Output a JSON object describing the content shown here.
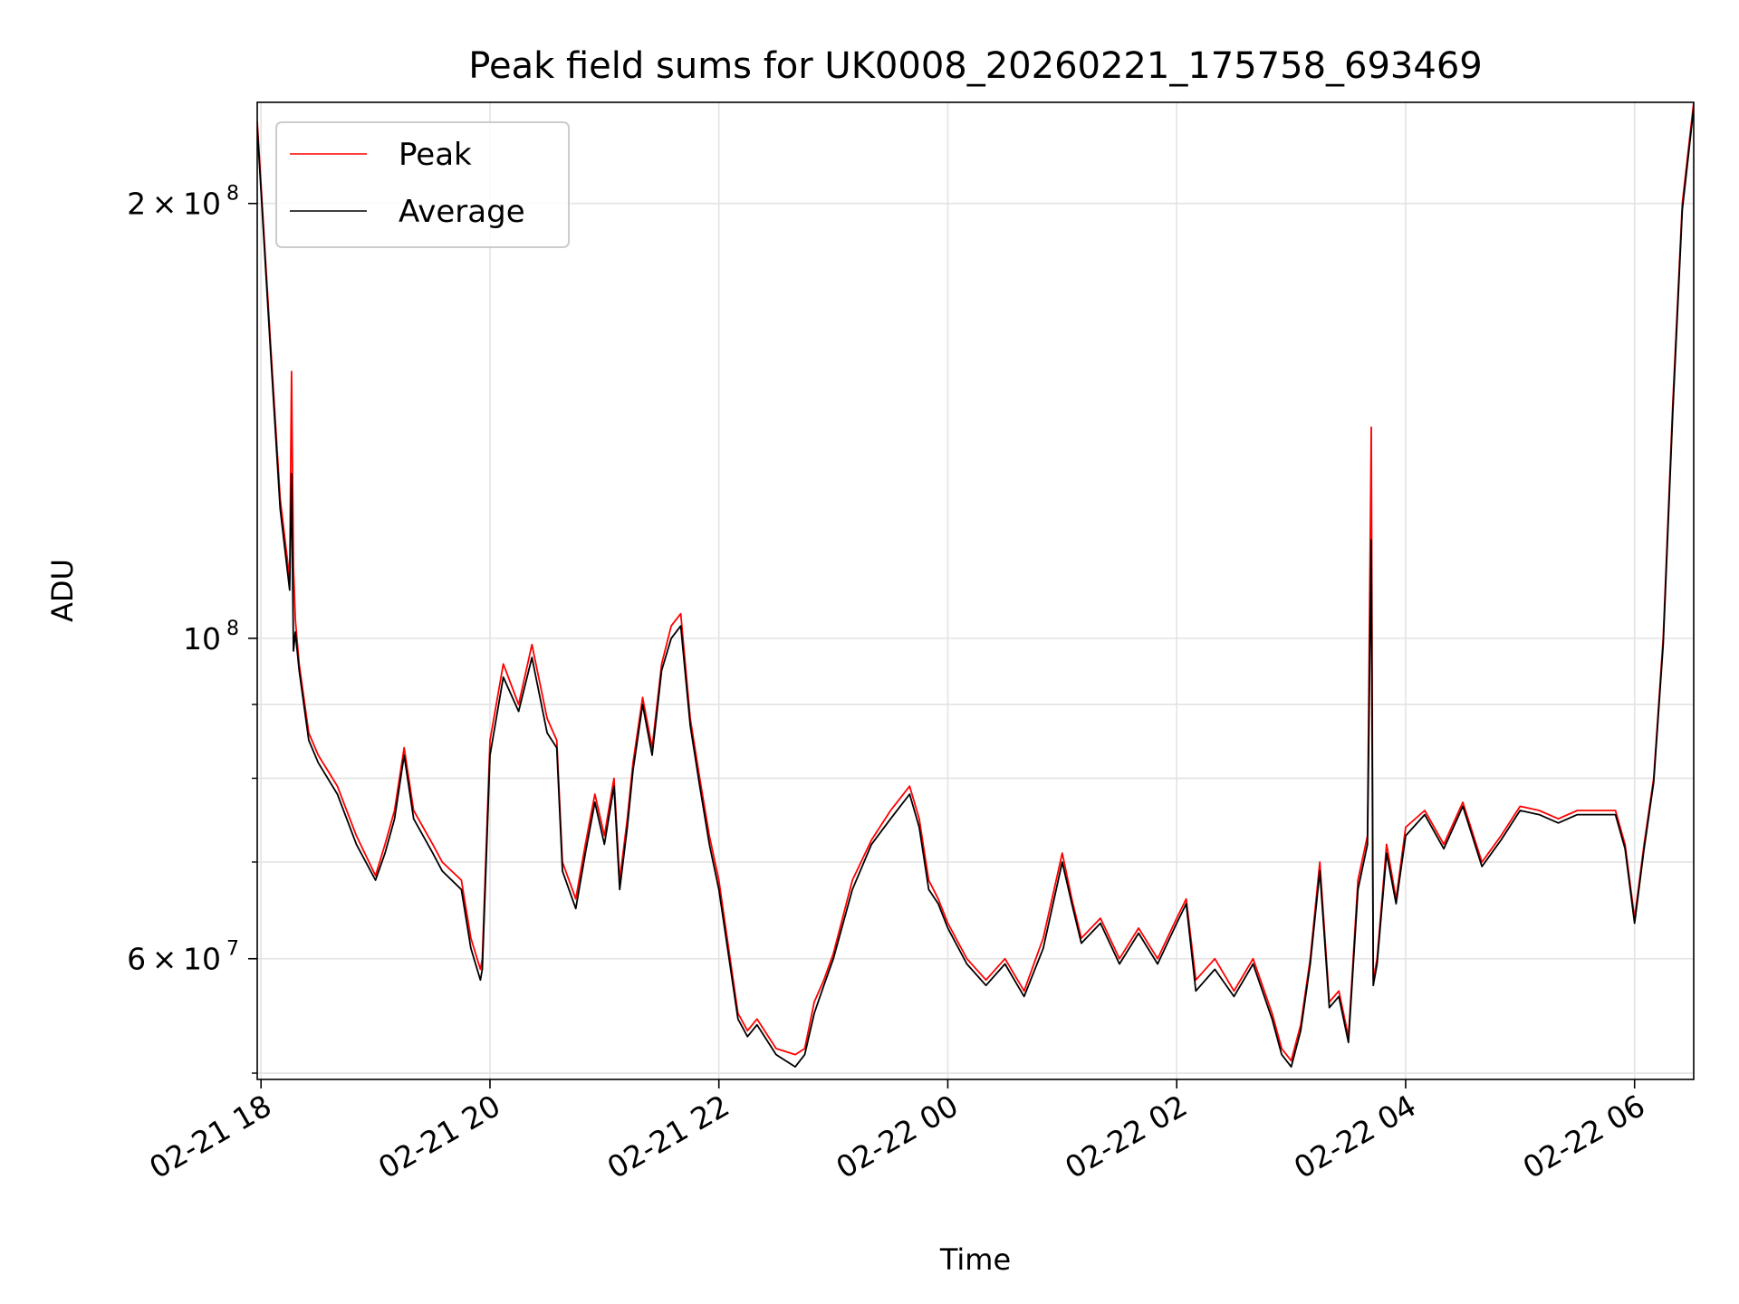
{
  "chart_data": {
    "type": "line",
    "title": "Peak field sums for UK0008_20260221_175758_693469",
    "xlabel": "Time",
    "ylabel": "ADU",
    "x_axis_type": "datetime",
    "y_scale": "log",
    "xlim": [
      "2026-02-21 17:58",
      "2026-02-22 06:31"
    ],
    "ylim": [
      49500000,
      235000000
    ],
    "x_ticks": [
      {
        "value": "2026-02-21 18:00",
        "label": "02-21 18"
      },
      {
        "value": "2026-02-21 20:00",
        "label": "02-21 20"
      },
      {
        "value": "2026-02-21 22:00",
        "label": "02-21 22"
      },
      {
        "value": "2026-02-22 00:00",
        "label": "02-22 00"
      },
      {
        "value": "2026-02-22 02:00",
        "label": "02-22 02"
      },
      {
        "value": "2026-02-22 04:00",
        "label": "02-22 04"
      },
      {
        "value": "2026-02-22 06:00",
        "label": "02-22 06"
      }
    ],
    "y_major_ticks": [
      {
        "value": 60000000,
        "mantissa": "6",
        "exponent": "7"
      },
      {
        "value": 100000000,
        "mantissa": "",
        "exponent": "8"
      },
      {
        "value": 200000000,
        "mantissa": "2",
        "exponent": "8"
      }
    ],
    "y_minor_ticks": [
      50000000,
      70000000,
      80000000,
      90000000
    ],
    "grid": true,
    "legend_position": "top-left",
    "series": [
      {
        "name": "Peak",
        "color": "#ff0000",
        "x": [
          "2026-02-21 17:58",
          "2026-02-21 18:05",
          "2026-02-21 18:10",
          "2026-02-21 18:15",
          "2026-02-21 18:16",
          "2026-02-21 18:17",
          "2026-02-21 18:18",
          "2026-02-21 18:20",
          "2026-02-21 18:25",
          "2026-02-21 18:30",
          "2026-02-21 18:40",
          "2026-02-21 18:50",
          "2026-02-21 19:00",
          "2026-02-21 19:05",
          "2026-02-21 19:10",
          "2026-02-21 19:15",
          "2026-02-21 19:20",
          "2026-02-21 19:30",
          "2026-02-21 19:35",
          "2026-02-21 19:45",
          "2026-02-21 19:50",
          "2026-02-21 19:55",
          "2026-02-21 19:56",
          "2026-02-21 20:00",
          "2026-02-21 20:07",
          "2026-02-21 20:15",
          "2026-02-21 20:22",
          "2026-02-21 20:30",
          "2026-02-21 20:35",
          "2026-02-21 20:38",
          "2026-02-21 20:45",
          "2026-02-21 20:50",
          "2026-02-21 20:55",
          "2026-02-21 21:00",
          "2026-02-21 21:05",
          "2026-02-21 21:08",
          "2026-02-21 21:12",
          "2026-02-21 21:15",
          "2026-02-21 21:20",
          "2026-02-21 21:25",
          "2026-02-21 21:30",
          "2026-02-21 21:35",
          "2026-02-21 21:40",
          "2026-02-21 21:45",
          "2026-02-21 21:50",
          "2026-02-21 21:55",
          "2026-02-21 22:00",
          "2026-02-21 22:10",
          "2026-02-21 22:15",
          "2026-02-21 22:20",
          "2026-02-21 22:30",
          "2026-02-21 22:40",
          "2026-02-21 22:45",
          "2026-02-21 22:50",
          "2026-02-21 22:55",
          "2026-02-21 23:00",
          "2026-02-21 23:10",
          "2026-02-21 23:20",
          "2026-02-21 23:30",
          "2026-02-21 23:40",
          "2026-02-21 23:45",
          "2026-02-21 23:50",
          "2026-02-21 23:55",
          "2026-02-22 00:00",
          "2026-02-22 00:10",
          "2026-02-22 00:20",
          "2026-02-22 00:30",
          "2026-02-22 00:40",
          "2026-02-22 00:50",
          "2026-02-22 01:00",
          "2026-02-22 01:05",
          "2026-02-22 01:10",
          "2026-02-22 01:20",
          "2026-02-22 01:30",
          "2026-02-22 01:40",
          "2026-02-22 01:50",
          "2026-02-22 02:00",
          "2026-02-22 02:05",
          "2026-02-22 02:10",
          "2026-02-22 02:20",
          "2026-02-22 02:30",
          "2026-02-22 02:40",
          "2026-02-22 02:50",
          "2026-02-22 02:55",
          "2026-02-22 03:00",
          "2026-02-22 03:05",
          "2026-02-22 03:10",
          "2026-02-22 03:15",
          "2026-02-22 03:20",
          "2026-02-22 03:25",
          "2026-02-22 03:30",
          "2026-02-22 03:35",
          "2026-02-22 03:40",
          "2026-02-22 03:42",
          "2026-02-22 03:43",
          "2026-02-22 03:45",
          "2026-02-22 03:50",
          "2026-02-22 03:55",
          "2026-02-22 04:00",
          "2026-02-22 04:10",
          "2026-02-22 04:20",
          "2026-02-22 04:30",
          "2026-02-22 04:40",
          "2026-02-22 04:50",
          "2026-02-22 05:00",
          "2026-02-22 05:10",
          "2026-02-22 05:20",
          "2026-02-22 05:30",
          "2026-02-22 05:40",
          "2026-02-22 05:50",
          "2026-02-22 05:55",
          "2026-02-22 06:00",
          "2026-02-22 06:05",
          "2026-02-22 06:10",
          "2026-02-22 06:15",
          "2026-02-22 06:20",
          "2026-02-22 06:25",
          "2026-02-22 06:31"
        ],
        "y": [
          228000000,
          160000000,
          125000000,
          110000000,
          153000000,
          112000000,
          103000000,
          96000000,
          86000000,
          83000000,
          79000000,
          73000000,
          68500000,
          72000000,
          76000000,
          84000000,
          76000000,
          72000000,
          70000000,
          68000000,
          62000000,
          59000000,
          60000000,
          85000000,
          96000000,
          90000000,
          99000000,
          88000000,
          85000000,
          70000000,
          66000000,
          72000000,
          78000000,
          73000000,
          80000000,
          68000000,
          75000000,
          82000000,
          91000000,
          84000000,
          96000000,
          102000000,
          104000000,
          88000000,
          80000000,
          73000000,
          68000000,
          55000000,
          53500000,
          54500000,
          52000000,
          51500000,
          52000000,
          56000000,
          58000000,
          60500000,
          68000000,
          72500000,
          76000000,
          79000000,
          75000000,
          68000000,
          66000000,
          63500000,
          60000000,
          58000000,
          60000000,
          57000000,
          62000000,
          71000000,
          66000000,
          62000000,
          64000000,
          60000000,
          63000000,
          60000000,
          64000000,
          66000000,
          58000000,
          60000000,
          57000000,
          60000000,
          55000000,
          52000000,
          51000000,
          54000000,
          60000000,
          70000000,
          56000000,
          57000000,
          53000000,
          68000000,
          73000000,
          140000000,
          58000000,
          60000000,
          72000000,
          66000000,
          74000000,
          76000000,
          72000000,
          77000000,
          70000000,
          73000000,
          76500000,
          76000000,
          75000000,
          76000000,
          76000000,
          76000000,
          72000000,
          64000000,
          72000000,
          80000000,
          100000000,
          145000000,
          200000000,
          235000000
        ]
      },
      {
        "name": "Average",
        "color": "#000000",
        "x": [
          "2026-02-21 17:58",
          "2026-02-21 18:05",
          "2026-02-21 18:10",
          "2026-02-21 18:15",
          "2026-02-21 18:16",
          "2026-02-21 18:17",
          "2026-02-21 18:18",
          "2026-02-21 18:20",
          "2026-02-21 18:25",
          "2026-02-21 18:30",
          "2026-02-21 18:40",
          "2026-02-21 18:50",
          "2026-02-21 19:00",
          "2026-02-21 19:05",
          "2026-02-21 19:10",
          "2026-02-21 19:15",
          "2026-02-21 19:20",
          "2026-02-21 19:30",
          "2026-02-21 19:35",
          "2026-02-21 19:45",
          "2026-02-21 19:50",
          "2026-02-21 19:55",
          "2026-02-21 19:56",
          "2026-02-21 20:00",
          "2026-02-21 20:07",
          "2026-02-21 20:15",
          "2026-02-21 20:22",
          "2026-02-21 20:30",
          "2026-02-21 20:35",
          "2026-02-21 20:38",
          "2026-02-21 20:45",
          "2026-02-21 20:50",
          "2026-02-21 20:55",
          "2026-02-21 21:00",
          "2026-02-21 21:05",
          "2026-02-21 21:08",
          "2026-02-21 21:12",
          "2026-02-21 21:15",
          "2026-02-21 21:20",
          "2026-02-21 21:25",
          "2026-02-21 21:30",
          "2026-02-21 21:35",
          "2026-02-21 21:40",
          "2026-02-21 21:45",
          "2026-02-21 21:50",
          "2026-02-21 21:55",
          "2026-02-21 22:00",
          "2026-02-21 22:10",
          "2026-02-21 22:15",
          "2026-02-21 22:20",
          "2026-02-21 22:30",
          "2026-02-21 22:40",
          "2026-02-21 22:45",
          "2026-02-21 22:50",
          "2026-02-21 22:55",
          "2026-02-21 23:00",
          "2026-02-21 23:10",
          "2026-02-21 23:20",
          "2026-02-21 23:30",
          "2026-02-21 23:40",
          "2026-02-21 23:45",
          "2026-02-21 23:50",
          "2026-02-21 23:55",
          "2026-02-22 00:00",
          "2026-02-22 00:10",
          "2026-02-22 00:20",
          "2026-02-22 00:30",
          "2026-02-22 00:40",
          "2026-02-22 00:50",
          "2026-02-22 01:00",
          "2026-02-22 01:05",
          "2026-02-22 01:10",
          "2026-02-22 01:20",
          "2026-02-22 01:30",
          "2026-02-22 01:40",
          "2026-02-22 01:50",
          "2026-02-22 02:00",
          "2026-02-22 02:05",
          "2026-02-22 02:10",
          "2026-02-22 02:20",
          "2026-02-22 02:30",
          "2026-02-22 02:40",
          "2026-02-22 02:50",
          "2026-02-22 02:55",
          "2026-02-22 03:00",
          "2026-02-22 03:05",
          "2026-02-22 03:10",
          "2026-02-22 03:15",
          "2026-02-22 03:20",
          "2026-02-22 03:25",
          "2026-02-22 03:30",
          "2026-02-22 03:35",
          "2026-02-22 03:40",
          "2026-02-22 03:42",
          "2026-02-22 03:43",
          "2026-02-22 03:45",
          "2026-02-22 03:50",
          "2026-02-22 03:55",
          "2026-02-22 04:00",
          "2026-02-22 04:10",
          "2026-02-22 04:20",
          "2026-02-22 04:30",
          "2026-02-22 04:40",
          "2026-02-22 04:50",
          "2026-02-22 05:00",
          "2026-02-22 05:10",
          "2026-02-22 05:20",
          "2026-02-22 05:30",
          "2026-02-22 05:40",
          "2026-02-22 05:50",
          "2026-02-22 05:55",
          "2026-02-22 06:00",
          "2026-02-22 06:05",
          "2026-02-22 06:10",
          "2026-02-22 06:15",
          "2026-02-22 06:20",
          "2026-02-22 06:25",
          "2026-02-22 06:31"
        ],
        "y": [
          226000000,
          158000000,
          123000000,
          108000000,
          130000000,
          98000000,
          101000000,
          95000000,
          85000000,
          82000000,
          78000000,
          72000000,
          68000000,
          71000000,
          75000000,
          83000000,
          75000000,
          71000000,
          69000000,
          67000000,
          61000000,
          58000000,
          59000000,
          83000000,
          94000000,
          89000000,
          97000000,
          86000000,
          84000000,
          69000000,
          65000000,
          71000000,
          77000000,
          72000000,
          79000000,
          67000000,
          74000000,
          81000000,
          90000000,
          83000000,
          95000000,
          100000000,
          102000000,
          87000000,
          79000000,
          72000000,
          67000000,
          54500000,
          53000000,
          54000000,
          51500000,
          50500000,
          51500000,
          55000000,
          57500000,
          60000000,
          67000000,
          72000000,
          75000000,
          78000000,
          74000000,
          67000000,
          65500000,
          63000000,
          59500000,
          57500000,
          59500000,
          56500000,
          61000000,
          70000000,
          65500000,
          61500000,
          63500000,
          59500000,
          62500000,
          59500000,
          63500000,
          65500000,
          57000000,
          59000000,
          56500000,
          59500000,
          54500000,
          51500000,
          50500000,
          53500000,
          59500000,
          69000000,
          55500000,
          56500000,
          52500000,
          67000000,
          72000000,
          117000000,
          57500000,
          59500000,
          71000000,
          65500000,
          73000000,
          75500000,
          71500000,
          76500000,
          69500000,
          72500000,
          76000000,
          75500000,
          74500000,
          75500000,
          75500000,
          75500000,
          71500000,
          63500000,
          71500000,
          79500000,
          99000000,
          143000000,
          198000000,
          233000000
        ]
      }
    ]
  }
}
